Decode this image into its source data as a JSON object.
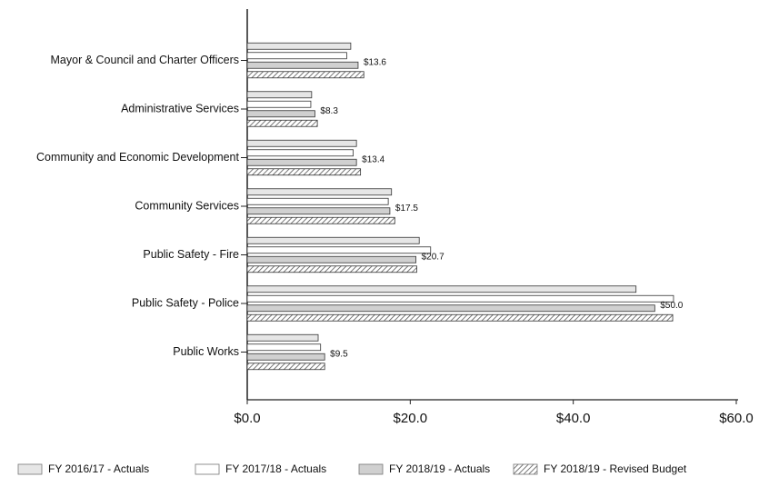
{
  "chart_data": {
    "type": "hbar",
    "categories": [
      "Mayor & Council and Charter Officers",
      "Administrative Services",
      "Community and Economic Development",
      "Community Services",
      "Public Safety - Fire",
      "Public Safety - Police",
      "Public Works"
    ],
    "series": [
      {
        "name": "FY 2016/17 - Actuals",
        "color": "#e6e6e6",
        "values": [
          12.7,
          7.9,
          13.4,
          17.7,
          21.1,
          47.7,
          8.7
        ]
      },
      {
        "name": "FY 2017/18 - Actuals",
        "color": "#ffffff",
        "values": [
          12.2,
          7.8,
          13.0,
          17.3,
          22.5,
          52.3,
          9.0
        ]
      },
      {
        "name": "FY 2018/19 - Actuals",
        "color": "#d0d0d0",
        "values": [
          13.6,
          8.3,
          13.4,
          17.5,
          20.7,
          50.0,
          9.5
        ],
        "value_labels": [
          "$13.6",
          "$8.3",
          "$13.4",
          "$17.5",
          "$20.7",
          "$50.0",
          "$9.5"
        ]
      },
      {
        "name": "FY 2018/19 - Revised Budget",
        "color": "#9a9a9a",
        "values": [
          14.3,
          8.6,
          13.9,
          18.1,
          20.8,
          52.2,
          9.5
        ]
      }
    ],
    "xlim": [
      0,
      60
    ],
    "xticks": [
      {
        "value": 0,
        "label": "$0.0"
      },
      {
        "value": 20,
        "label": "$20.0"
      },
      {
        "value": 40,
        "label": "$40.0"
      },
      {
        "value": 60,
        "label": "$60.0"
      }
    ]
  }
}
